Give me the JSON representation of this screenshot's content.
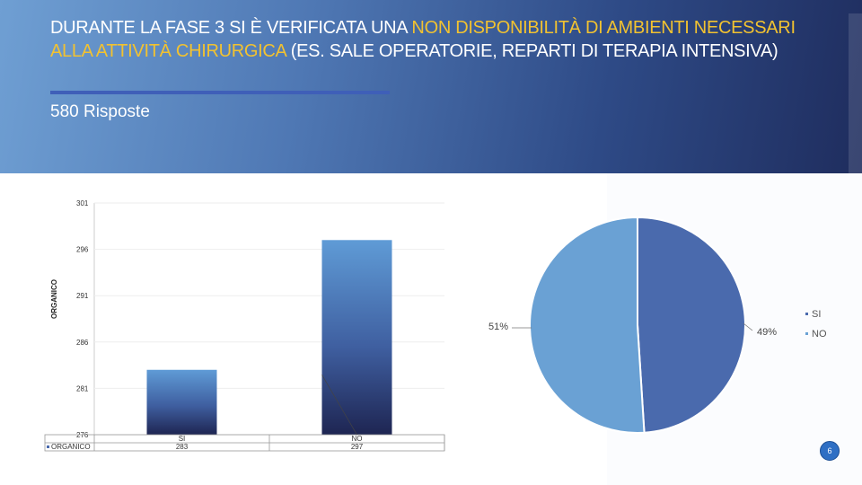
{
  "slide": {
    "title_part1": "DURANTE LA FASE 3 SI È VERIFICATA UNA ",
    "title_highlight": "NON DISPONIBILITÀ DI AMBIENTI NECESSARI ALLA ATTIVITÀ CHIRURGICA",
    "title_part2": " (ES. SALE OPERATORIE, REPARTI DI TERAPIA INTENSIVA)",
    "subtitle": "580 Risposte",
    "page_number": "6",
    "colors": {
      "highlight": "#f2c230",
      "pie_si": "#4a6aad",
      "pie_no": "#6aa1d4",
      "header_start": "#6f9fd3",
      "header_end": "#1f2d5e"
    }
  },
  "chart_data": [
    {
      "type": "bar",
      "categories": [
        "SI",
        "NO"
      ],
      "series": [
        {
          "name": "ORGANICO",
          "values": [
            283,
            297
          ]
        }
      ],
      "ylabel": "ORGANICO",
      "ylim": [
        276,
        301
      ],
      "yticks": [
        276,
        281,
        286,
        291,
        296,
        301
      ],
      "table_label": "ORGANICO"
    },
    {
      "type": "pie",
      "labels": [
        "SI",
        "NO"
      ],
      "values": [
        49,
        51
      ],
      "value_labels": [
        "49%",
        "51%"
      ],
      "legend": "right"
    }
  ]
}
